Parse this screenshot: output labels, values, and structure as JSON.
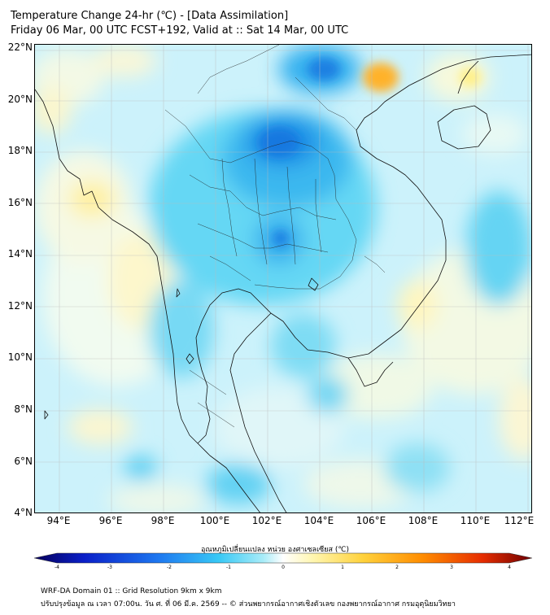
{
  "title": {
    "line1": "Temperature Change 24-hr (℃) - [Data Assimilation]",
    "line2": "Friday 06 Mar, 00 UTC FCST+192, Valid at :: Sat 14 Mar, 00 UTC"
  },
  "map": {
    "lat_labels": [
      "22°N",
      "20°N",
      "18°N",
      "16°N",
      "14°N",
      "12°N",
      "10°N",
      "8°N",
      "6°N",
      "4°N"
    ],
    "lon_labels": [
      "94°E",
      "96°E",
      "98°E",
      "100°E",
      "102°E",
      "104°E",
      "106°E",
      "108°E",
      "110°E",
      "112°E"
    ],
    "region": "Thailand and Southeast Asia"
  },
  "colorbar": {
    "label": "อุณหภูมิเปลี่ยนแปลง หน่วย องศาเซลเซียส (℃)",
    "ticks": [
      "-4",
      "-3",
      "-2",
      "-1",
      "0",
      "1",
      "2",
      "3",
      "4"
    ],
    "range": [
      -4,
      4
    ],
    "colors": [
      "#06005a",
      "#0a1fc8",
      "#1e78f0",
      "#37c8f5",
      "#a8ecf8",
      "#ffffff",
      "#fff6b0",
      "#ffd23c",
      "#ff8c00",
      "#e62d00",
      "#6e0000"
    ]
  },
  "footer": {
    "line1": "WRF-DA Domain 01 :: Grid Resolution 9km x 9km",
    "line2": "ปรับปรุงข้อมูล ณ เวลา 07:00น. วัน ศ. ที่ 06 มี.ค. 2569 -- © ส่วนพยากรณ์อากาศเชิงตัวเลข กองพยากรณ์อากาศ กรมอุตุนิยมวิทยา"
  }
}
